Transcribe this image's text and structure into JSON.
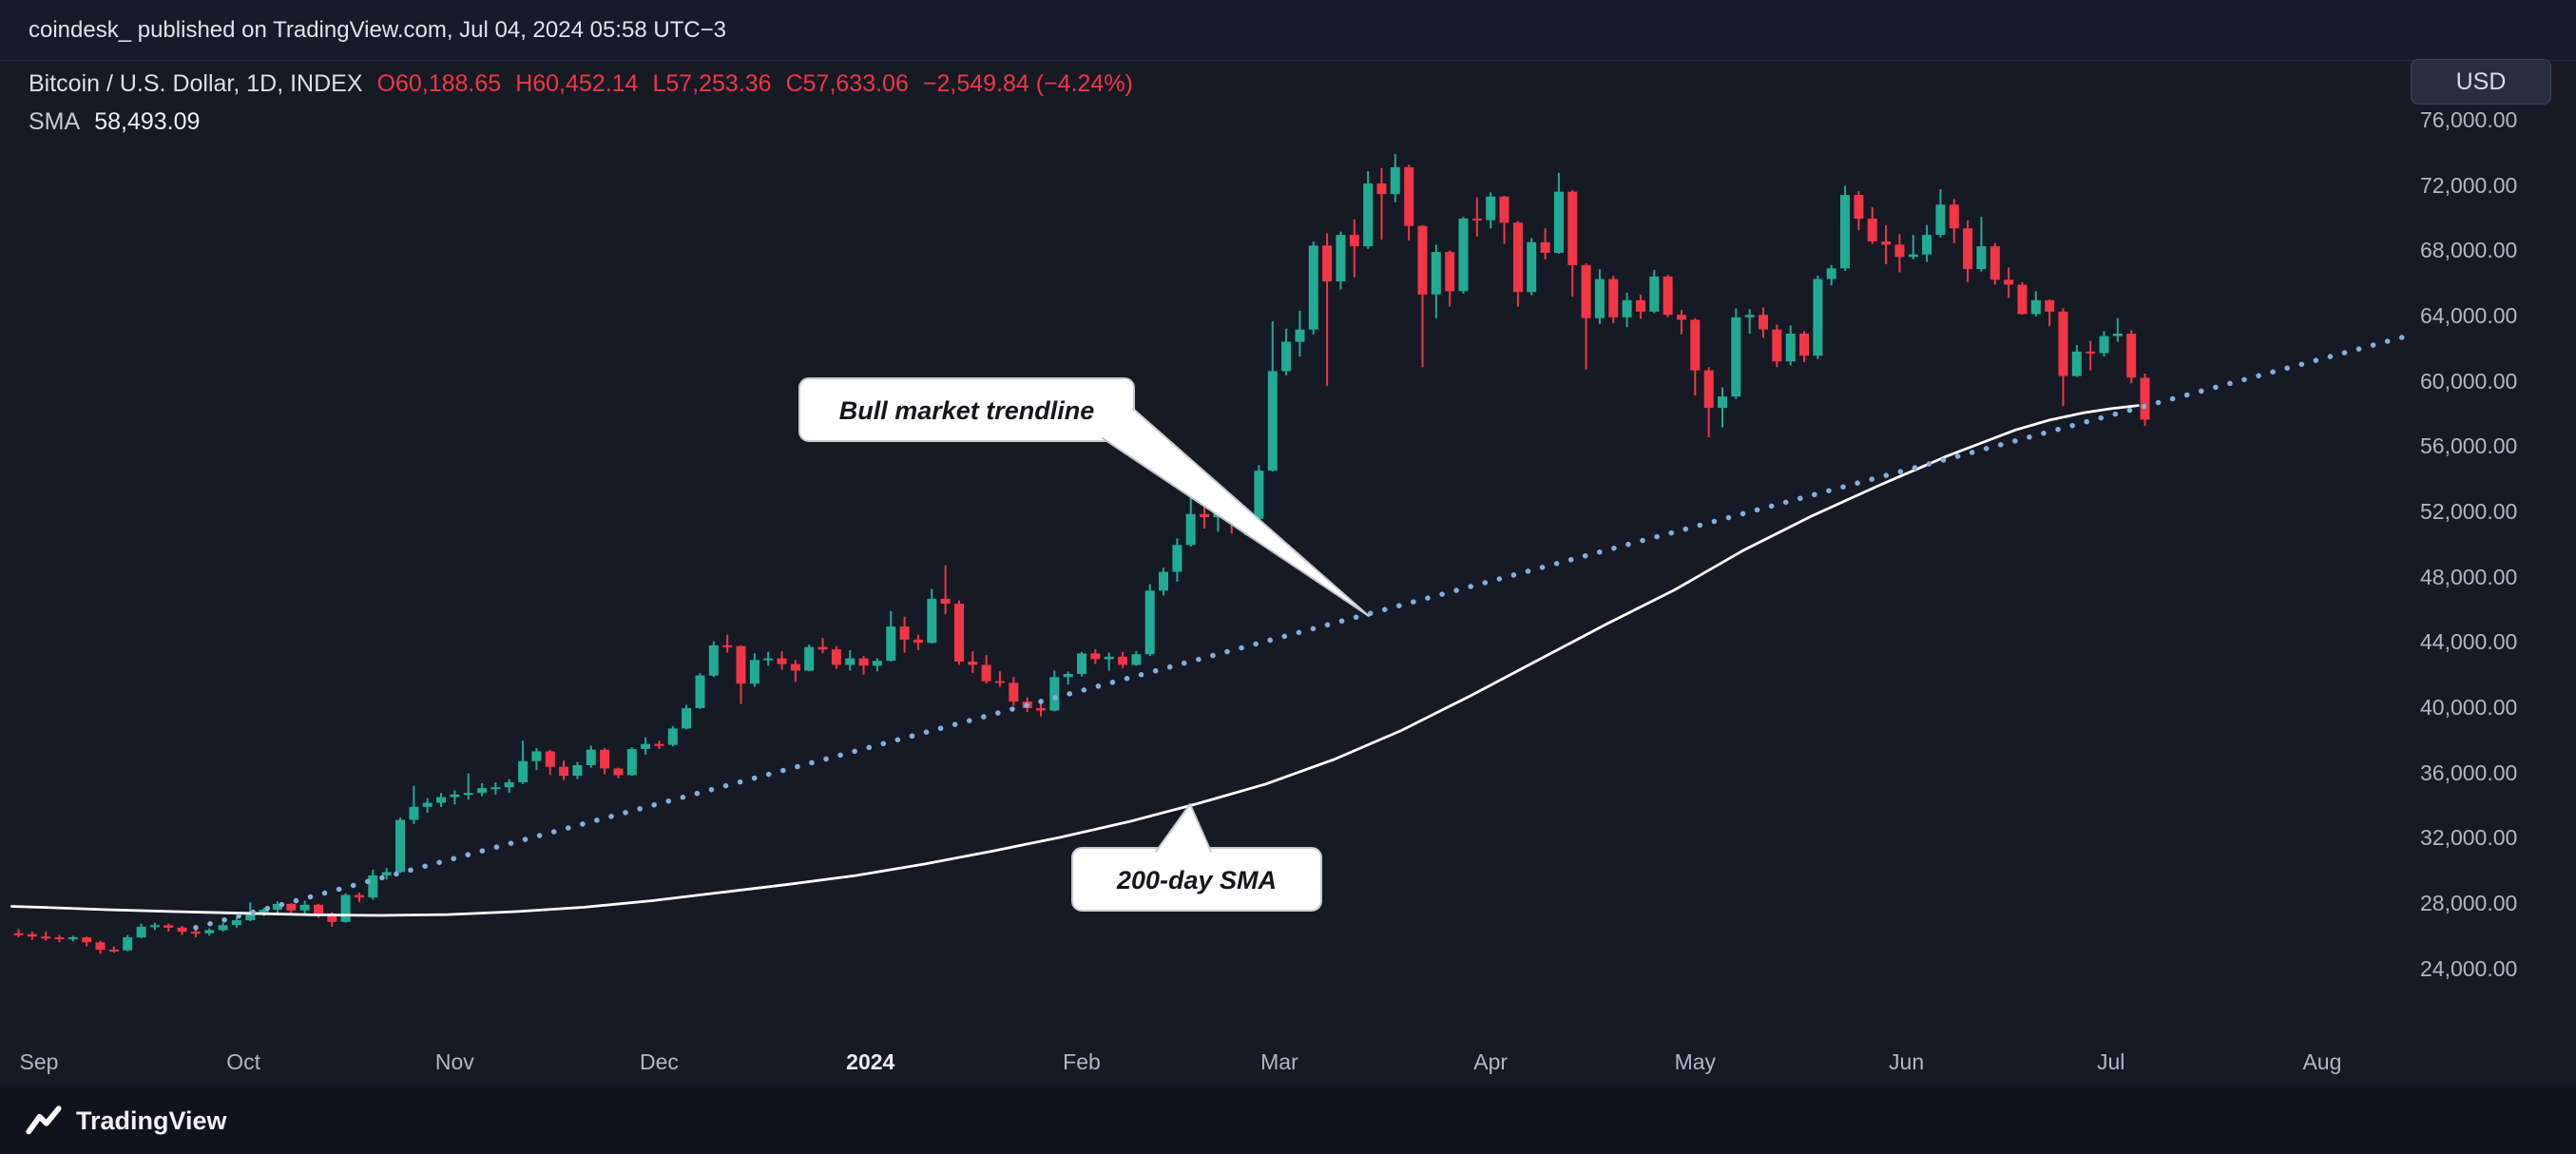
{
  "topbar": {
    "attribution": "coindesk_ published on TradingView.com, Jul 04, 2024 05:58 UTC−3"
  },
  "legend": {
    "symbol": "Bitcoin / U.S. Dollar, 1D, INDEX",
    "open": "O60,188.65",
    "high": "H60,452.14",
    "low": "L57,253.36",
    "close": "C57,633.06",
    "change": "−2,549.84 (−4.24%)",
    "sma_label": "SMA",
    "sma_value": "58,493.09"
  },
  "currency_button": "USD",
  "price_axis": [
    {
      "label": "76,000.00",
      "value": 76000
    },
    {
      "label": "72,000.00",
      "value": 72000
    },
    {
      "label": "68,000.00",
      "value": 68000
    },
    {
      "label": "64,000.00",
      "value": 64000
    },
    {
      "label": "60,000.00",
      "value": 60000
    },
    {
      "label": "56,000.00",
      "value": 56000
    },
    {
      "label": "52,000.00",
      "value": 52000
    },
    {
      "label": "48,000.00",
      "value": 48000
    },
    {
      "label": "44,000.00",
      "value": 44000
    },
    {
      "label": "40,000.00",
      "value": 40000
    },
    {
      "label": "36,000.00",
      "value": 36000
    },
    {
      "label": "32,000.00",
      "value": 32000
    },
    {
      "label": "28,000.00",
      "value": 28000
    },
    {
      "label": "24,000.00",
      "value": 24000
    }
  ],
  "time_axis": [
    {
      "label": "Sep",
      "day": 0
    },
    {
      "label": "Oct",
      "day": 30
    },
    {
      "label": "Nov",
      "day": 61
    },
    {
      "label": "Dec",
      "day": 91
    },
    {
      "label": "2024",
      "day": 122
    },
    {
      "label": "Feb",
      "day": 153
    },
    {
      "label": "Mar",
      "day": 182
    },
    {
      "label": "Apr",
      "day": 213
    },
    {
      "label": "May",
      "day": 243
    },
    {
      "label": "Jun",
      "day": 274
    },
    {
      "label": "Jul",
      "day": 304
    },
    {
      "label": "Aug",
      "day": 335
    }
  ],
  "callouts": [
    {
      "text": "Bull market trendline"
    },
    {
      "text": "200-day SMA"
    }
  ],
  "footer": {
    "brand": "TradingView"
  },
  "chart_data": {
    "type": "candlestick",
    "title": "Bitcoin / U.S. Dollar, 1D, INDEX",
    "x_unit": "days since Sep 1, 2023",
    "ylim": [
      19500,
      79500
    ],
    "price_ticks": [
      24000,
      28000,
      32000,
      36000,
      40000,
      44000,
      48000,
      52000,
      56000,
      60000,
      64000,
      68000,
      72000,
      76000
    ],
    "colors": {
      "up": "#22ab94",
      "down": "#f23645"
    },
    "last": {
      "open": 60188.65,
      "high": 60452.14,
      "low": 57253.36,
      "close": 57633.06,
      "change": -2549.84,
      "change_pct": -4.24,
      "sma200": 58493.09
    },
    "candles": [
      [
        -4,
        26150,
        26400,
        25900,
        26100
      ],
      [
        -2,
        26100,
        26250,
        25750,
        25950
      ],
      [
        0,
        25950,
        26250,
        25700,
        25900
      ],
      [
        2,
        25900,
        26050,
        25600,
        25800
      ],
      [
        4,
        25800,
        26000,
        25650,
        25900
      ],
      [
        6,
        25900,
        25950,
        25350,
        25600
      ],
      [
        8,
        25600,
        25700,
        24900,
        25150
      ],
      [
        10,
        25150,
        25350,
        24950,
        25100
      ],
      [
        12,
        25100,
        26050,
        25050,
        25900
      ],
      [
        14,
        25900,
        26750,
        25850,
        26550
      ],
      [
        16,
        26550,
        26800,
        26350,
        26650
      ],
      [
        18,
        26650,
        26750,
        26250,
        26500
      ],
      [
        20,
        26500,
        26600,
        26050,
        26250
      ],
      [
        22,
        26250,
        26400,
        25900,
        26150
      ],
      [
        24,
        26150,
        26450,
        26000,
        26350
      ],
      [
        26,
        26350,
        26800,
        26250,
        26650
      ],
      [
        28,
        26650,
        27100,
        26500,
        26950
      ],
      [
        30,
        26950,
        28050,
        26900,
        27450
      ],
      [
        32,
        27450,
        27700,
        27200,
        27600
      ],
      [
        34,
        27600,
        28100,
        27400,
        27950
      ],
      [
        36,
        27950,
        28000,
        27300,
        27550
      ],
      [
        38,
        27550,
        28150,
        27350,
        27900
      ],
      [
        40,
        27900,
        27950,
        27100,
        27350
      ],
      [
        42,
        27350,
        27450,
        26550,
        26850
      ],
      [
        44,
        26850,
        28600,
        26800,
        28500
      ],
      [
        46,
        28500,
        28650,
        28050,
        28350
      ],
      [
        48,
        28350,
        30050,
        28200,
        29700
      ],
      [
        50,
        29700,
        30150,
        29450,
        29900
      ],
      [
        52,
        29900,
        33250,
        29850,
        33100
      ],
      [
        54,
        33100,
        35200,
        32850,
        33900
      ],
      [
        56,
        33900,
        34450,
        33550,
        34150
      ],
      [
        58,
        34150,
        34750,
        33900,
        34500
      ],
      [
        60,
        34500,
        34900,
        34050,
        34650
      ],
      [
        62,
        34650,
        35950,
        34350,
        34750
      ],
      [
        64,
        34750,
        35350,
        34550,
        35050
      ],
      [
        66,
        35050,
        35400,
        34650,
        35100
      ],
      [
        68,
        35100,
        35600,
        34750,
        35400
      ],
      [
        70,
        35400,
        37950,
        35300,
        36700
      ],
      [
        72,
        36700,
        37500,
        36150,
        37300
      ],
      [
        74,
        37300,
        37400,
        35850,
        36350
      ],
      [
        76,
        36350,
        36750,
        35550,
        35800
      ],
      [
        78,
        35800,
        36650,
        35600,
        36450
      ],
      [
        80,
        36450,
        37650,
        36300,
        37400
      ],
      [
        82,
        37400,
        37500,
        35900,
        36250
      ],
      [
        84,
        36250,
        36300,
        35650,
        35850
      ],
      [
        86,
        35850,
        37550,
        35800,
        37450
      ],
      [
        88,
        37450,
        38150,
        37100,
        37750
      ],
      [
        90,
        37750,
        37950,
        37450,
        37700
      ],
      [
        92,
        37700,
        38850,
        37600,
        38700
      ],
      [
        94,
        38700,
        40150,
        38650,
        39950
      ],
      [
        96,
        39950,
        42100,
        39900,
        41950
      ],
      [
        98,
        41950,
        44050,
        41850,
        43800
      ],
      [
        100,
        43800,
        44450,
        43350,
        43750
      ],
      [
        102,
        43750,
        43800,
        40200,
        41450
      ],
      [
        104,
        41450,
        43300,
        41250,
        42900
      ],
      [
        106,
        42900,
        43400,
        42550,
        43000
      ],
      [
        108,
        43000,
        43450,
        42300,
        42650
      ],
      [
        110,
        42650,
        42900,
        41550,
        42250
      ],
      [
        112,
        42250,
        43850,
        42200,
        43700
      ],
      [
        114,
        43700,
        44250,
        43300,
        43550
      ],
      [
        116,
        43550,
        43750,
        42350,
        42600
      ],
      [
        118,
        42600,
        43500,
        42250,
        43000
      ],
      [
        120,
        43000,
        43150,
        42000,
        42550
      ],
      [
        122,
        42550,
        43000,
        42200,
        42850
      ],
      [
        124,
        42850,
        45900,
        42800,
        44950
      ],
      [
        126,
        44950,
        45550,
        43350,
        44150
      ],
      [
        128,
        44150,
        44450,
        43500,
        43950
      ],
      [
        130,
        43950,
        47250,
        43900,
        46650
      ],
      [
        132,
        46650,
        48700,
        45700,
        46350
      ],
      [
        134,
        46350,
        46550,
        42600,
        42800
      ],
      [
        136,
        42800,
        43450,
        42100,
        42600
      ],
      [
        138,
        42600,
        43200,
        41450,
        41600
      ],
      [
        140,
        41600,
        42200,
        41250,
        41500
      ],
      [
        142,
        41500,
        41850,
        40100,
        40350
      ],
      [
        144,
        40350,
        40600,
        39700,
        39950
      ],
      [
        146,
        39950,
        40300,
        39450,
        39800
      ],
      [
        148,
        39800,
        42250,
        39750,
        41850
      ],
      [
        150,
        41850,
        42200,
        41400,
        42050
      ],
      [
        152,
        42050,
        43400,
        41900,
        43300
      ],
      [
        154,
        43300,
        43550,
        42650,
        42950
      ],
      [
        156,
        42950,
        43350,
        42250,
        43100
      ],
      [
        158,
        43100,
        43400,
        42400,
        42600
      ],
      [
        160,
        42600,
        43450,
        42550,
        43250
      ],
      [
        162,
        43250,
        47550,
        43150,
        47150
      ],
      [
        164,
        47150,
        48550,
        46850,
        48300
      ],
      [
        166,
        48300,
        50350,
        47700,
        49950
      ],
      [
        168,
        49950,
        52850,
        49850,
        51850
      ],
      [
        170,
        51850,
        52550,
        50950,
        51650
      ],
      [
        172,
        51650,
        52450,
        50750,
        52250
      ],
      [
        174,
        52250,
        52350,
        50650,
        51300
      ],
      [
        176,
        51300,
        52000,
        50550,
        51550
      ],
      [
        178,
        51550,
        54850,
        51250,
        54500
      ],
      [
        180,
        54500,
        63650,
        54450,
        60600
      ],
      [
        182,
        60600,
        63200,
        60350,
        62400
      ],
      [
        184,
        62400,
        64300,
        61500,
        63150
      ],
      [
        186,
        63150,
        68550,
        62850,
        68300
      ],
      [
        188,
        68300,
        69050,
        59700,
        66100
      ],
      [
        190,
        66100,
        69150,
        65600,
        68950
      ],
      [
        192,
        68950,
        69900,
        66350,
        68250
      ],
      [
        194,
        68250,
        72850,
        68100,
        72100
      ],
      [
        196,
        72100,
        73050,
        68650,
        71450
      ],
      [
        198,
        71450,
        73900,
        70950,
        73100
      ],
      [
        200,
        73100,
        73250,
        68600,
        69500
      ],
      [
        202,
        69500,
        69550,
        60850,
        65300
      ],
      [
        204,
        65300,
        68350,
        63850,
        67900
      ],
      [
        206,
        67900,
        68000,
        64550,
        65500
      ],
      [
        208,
        65500,
        70050,
        65350,
        69950
      ],
      [
        210,
        69950,
        71250,
        68850,
        69850
      ],
      [
        212,
        69850,
        71550,
        69350,
        71300
      ],
      [
        214,
        71300,
        71350,
        68400,
        69700
      ],
      [
        216,
        69700,
        69800,
        64550,
        65450
      ],
      [
        218,
        65450,
        68750,
        65250,
        68500
      ],
      [
        220,
        68500,
        69350,
        67450,
        67850
      ],
      [
        222,
        67850,
        72750,
        67800,
        71600
      ],
      [
        224,
        71600,
        71700,
        65150,
        67100
      ],
      [
        226,
        67100,
        67200,
        60700,
        63850
      ],
      [
        228,
        63850,
        66850,
        63500,
        66250
      ],
      [
        230,
        66250,
        66450,
        63550,
        63900
      ],
      [
        232,
        63900,
        65400,
        63300,
        64950
      ],
      [
        234,
        64950,
        65300,
        63800,
        64250
      ],
      [
        236,
        64250,
        66800,
        64150,
        66400
      ],
      [
        238,
        66400,
        66500,
        63900,
        64050
      ],
      [
        240,
        64050,
        64350,
        62850,
        63750
      ],
      [
        242,
        63750,
        63850,
        59100,
        60650
      ],
      [
        244,
        60650,
        60850,
        56550,
        58350
      ],
      [
        246,
        58350,
        59600,
        57150,
        59050
      ],
      [
        248,
        59050,
        64450,
        58900,
        63900
      ],
      [
        250,
        63900,
        64400,
        62900,
        64050
      ],
      [
        252,
        64050,
        64500,
        62650,
        63150
      ],
      [
        254,
        63150,
        63450,
        60850,
        61200
      ],
      [
        256,
        61200,
        63400,
        60950,
        62900
      ],
      [
        258,
        62900,
        63050,
        61150,
        61550
      ],
      [
        260,
        61550,
        66450,
        61350,
        66250
      ],
      [
        262,
        66250,
        67100,
        65850,
        66900
      ],
      [
        264,
        66900,
        71950,
        66750,
        71400
      ],
      [
        266,
        71400,
        71650,
        69250,
        69950
      ],
      [
        268,
        69950,
        70650,
        68400,
        68550
      ],
      [
        270,
        68550,
        69550,
        67150,
        68350
      ],
      [
        272,
        68350,
        69000,
        66650,
        67600
      ],
      [
        274,
        67600,
        68950,
        67450,
        67750
      ],
      [
        276,
        67750,
        69550,
        67300,
        68950
      ],
      [
        278,
        68950,
        71750,
        68800,
        70800
      ],
      [
        280,
        70800,
        71150,
        68450,
        69350
      ],
      [
        282,
        69350,
        69850,
        66050,
        66850
      ],
      [
        284,
        66850,
        70050,
        66700,
        68250
      ],
      [
        286,
        68250,
        68450,
        65900,
        66200
      ],
      [
        288,
        66200,
        66950,
        65100,
        65900
      ],
      [
        290,
        65900,
        66050,
        64060,
        64100
      ],
      [
        292,
        64100,
        65500,
        63950,
        64950
      ],
      [
        294,
        64950,
        65000,
        63350,
        64250
      ],
      [
        296,
        64250,
        64450,
        58450,
        60300
      ],
      [
        298,
        60300,
        62200,
        60250,
        61800
      ],
      [
        300,
        61800,
        62450,
        60650,
        61700
      ],
      [
        302,
        61700,
        63050,
        61500,
        62750
      ],
      [
        304,
        62750,
        63850,
        62400,
        62900
      ],
      [
        306,
        62900,
        63100,
        59850,
        60200
      ],
      [
        308,
        60189,
        60452,
        57253,
        57633
      ]
    ],
    "overlays": {
      "sma200": {
        "name": "200-day SMA",
        "color": "#ffffff",
        "points": [
          [
            -4,
            27800
          ],
          [
            0,
            27750
          ],
          [
            10,
            27600
          ],
          [
            20,
            27480
          ],
          [
            30,
            27380
          ],
          [
            40,
            27280
          ],
          [
            50,
            27250
          ],
          [
            60,
            27300
          ],
          [
            70,
            27480
          ],
          [
            80,
            27750
          ],
          [
            90,
            28150
          ],
          [
            100,
            28650
          ],
          [
            110,
            29150
          ],
          [
            120,
            29700
          ],
          [
            130,
            30400
          ],
          [
            140,
            31200
          ],
          [
            150,
            32050
          ],
          [
            160,
            33000
          ],
          [
            170,
            34100
          ],
          [
            180,
            35300
          ],
          [
            190,
            36800
          ],
          [
            200,
            38600
          ],
          [
            210,
            40700
          ],
          [
            220,
            42900
          ],
          [
            230,
            45100
          ],
          [
            240,
            47200
          ],
          [
            250,
            49600
          ],
          [
            260,
            51700
          ],
          [
            270,
            53600
          ],
          [
            280,
            55400
          ],
          [
            285,
            56200
          ],
          [
            290,
            57000
          ],
          [
            295,
            57600
          ],
          [
            300,
            58050
          ],
          [
            304,
            58300
          ],
          [
            308,
            58493
          ]
        ]
      },
      "trendline": {
        "name": "Bull market trendline",
        "style": "dotted",
        "color": "#84aedd",
        "from": [
          23,
          26500
        ],
        "to": [
          347,
          62700
        ]
      }
    }
  }
}
